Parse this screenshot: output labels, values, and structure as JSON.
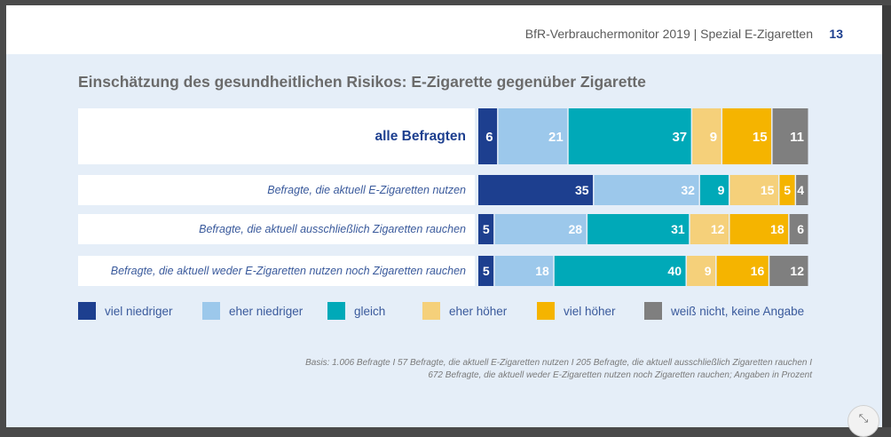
{
  "header": {
    "title": "BfR-Verbrauchermonitor 2019 | Spezial E-Zigaretten",
    "page_number": "13"
  },
  "footnote": {
    "line1": "Basis: 1.006 Befragte I 57 Befragte, die aktuell E-Zigaretten nutzen I 205 Befragte, die aktuell ausschließlich Zigaretten rauchen I",
    "line2": "672 Befragte, die aktuell weder E-Zigaretten nutzen noch Zigaretten rauchen; Angaben in Prozent"
  },
  "colors": {
    "viel_niedriger": "#1d3f8f",
    "eher_niedriger": "#9cc8eb",
    "gleich": "#00a9b8",
    "eher_hoeher": "#f5d07a",
    "viel_hoeher": "#f5b400",
    "weiss_nicht": "#7f7f7f"
  },
  "chart_data": {
    "type": "bar",
    "orientation": "horizontal",
    "stacked": true,
    "title": "Einschätzung des gesundheitlichen Risikos: E-Zigarette gegenüber Zigarette",
    "categories": [
      "alle Befragten",
      "Befragte, die aktuell E-Zigaretten nutzen",
      "Befragte, die aktuell ausschließlich Zigaretten rauchen",
      "Befragte, die aktuell weder E-Zigaretten nutzen noch Zigaretten rauchen"
    ],
    "series": [
      {
        "name": "viel niedriger",
        "color": "#1d3f8f",
        "values": [
          6,
          35,
          5,
          5
        ]
      },
      {
        "name": "eher niedriger",
        "color": "#9cc8eb",
        "values": [
          21,
          32,
          28,
          18
        ]
      },
      {
        "name": "gleich",
        "color": "#00a9b8",
        "values": [
          37,
          9,
          31,
          40
        ]
      },
      {
        "name": "eher höher",
        "color": "#f5d07a",
        "values": [
          9,
          15,
          12,
          9
        ]
      },
      {
        "name": "viel höher",
        "color": "#f5b400",
        "values": [
          15,
          5,
          18,
          16
        ]
      },
      {
        "name": "weiß nicht, keine Angabe",
        "color": "#7f7f7f",
        "values": [
          11,
          4,
          6,
          12
        ]
      }
    ],
    "unit": "Prozent",
    "legend_position": "bottom"
  }
}
